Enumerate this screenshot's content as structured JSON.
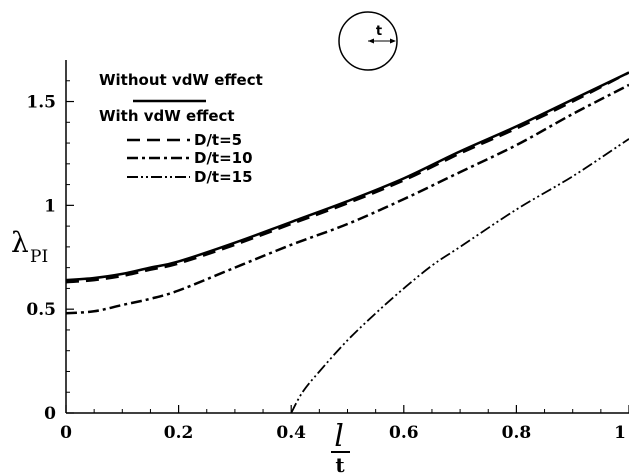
{
  "chart_data": {
    "type": "line",
    "xlabel": {
      "main": "l",
      "sub": "t"
    },
    "ylabel": {
      "main": "λ",
      "sub": "PI"
    },
    "xlim": [
      0,
      1
    ],
    "ylim": [
      0,
      1.7
    ],
    "xticks": [
      "0",
      "0.2",
      "0.4",
      "0.6",
      "0.8",
      "1"
    ],
    "yticks": [
      "0",
      "0.5",
      "1",
      "1.5"
    ],
    "xtick_values": [
      0,
      0.2,
      0.4,
      0.6,
      0.8,
      1
    ],
    "ytick_values": [
      0,
      0.5,
      1,
      1.5
    ],
    "grid": false,
    "legend": {
      "position": "top-left",
      "style_entries": [
        {
          "label": "Without vdW effect",
          "style": "none"
        },
        {
          "label": "With vdW effect",
          "style": "solid"
        }
      ],
      "entries": [
        {
          "label": "D/t=5",
          "style": "dashed"
        },
        {
          "label": "D/t=10",
          "style": "dashdot"
        },
        {
          "label": "D/t=15",
          "style": "dashdotdot"
        }
      ]
    },
    "inset": {
      "label": "t",
      "shape": "circle with radius arrow"
    },
    "series": [
      {
        "name": "With vdW effect",
        "style": "solid",
        "x": [
          0,
          0.05,
          0.1,
          0.15,
          0.2,
          0.3,
          0.4,
          0.5,
          0.6,
          0.7,
          0.8,
          0.9,
          1.0
        ],
        "y": [
          0.64,
          0.65,
          0.67,
          0.7,
          0.73,
          0.82,
          0.92,
          1.02,
          1.13,
          1.26,
          1.38,
          1.51,
          1.64
        ]
      },
      {
        "name": "D/t=5",
        "style": "dashed",
        "x": [
          0,
          0.05,
          0.1,
          0.15,
          0.2,
          0.3,
          0.4,
          0.5,
          0.6,
          0.7,
          0.8,
          0.9,
          1.0
        ],
        "y": [
          0.63,
          0.64,
          0.66,
          0.69,
          0.72,
          0.81,
          0.91,
          1.01,
          1.12,
          1.25,
          1.37,
          1.5,
          1.64
        ]
      },
      {
        "name": "D/t=10",
        "style": "dashdot",
        "x": [
          0,
          0.05,
          0.1,
          0.15,
          0.2,
          0.3,
          0.4,
          0.5,
          0.6,
          0.7,
          0.8,
          0.9,
          1.0
        ],
        "y": [
          0.48,
          0.49,
          0.52,
          0.55,
          0.59,
          0.7,
          0.81,
          0.91,
          1.03,
          1.16,
          1.29,
          1.44,
          1.58
        ]
      },
      {
        "name": "D/t=15",
        "style": "dashdotdot",
        "x": [
          0.4,
          0.42,
          0.45,
          0.5,
          0.55,
          0.6,
          0.65,
          0.7,
          0.8,
          0.9,
          1.0
        ],
        "y": [
          0.0,
          0.1,
          0.2,
          0.35,
          0.48,
          0.6,
          0.71,
          0.8,
          0.98,
          1.14,
          1.32
        ]
      }
    ]
  }
}
